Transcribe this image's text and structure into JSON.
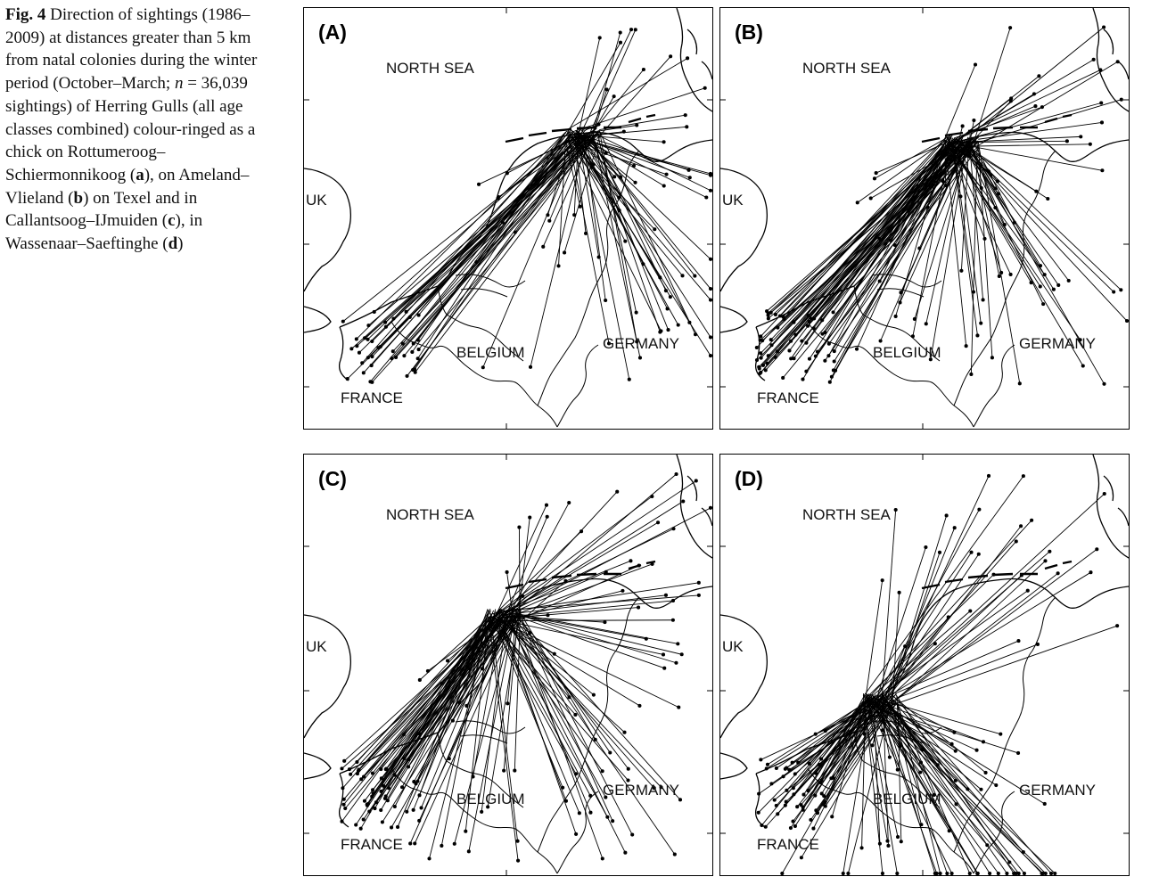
{
  "caption": {
    "fig_label": "Fig. 4",
    "text_1": "Direction of sightings (1986–2009) at distances greater than 5 km from natal colonies during the winter period (October–March; ",
    "n_symbol": "n",
    "text_2": " = 36,039 sightings) of Herring Gulls (all age classes combined) colour-ringed as a chick on Rottumeroog–Schiermonnikoog (",
    "a": "a",
    "text_3": "), on Ameland–Vlieland (",
    "b": "b",
    "text_4": ") on Texel and in Callantsoog–IJmuiden (",
    "c": "c",
    "text_5": "), in Wassenaar–Saeftinghe (",
    "d": "d",
    "text_6": ")"
  },
  "map_labels": {
    "north_sea": "NORTH SEA",
    "uk": "UK",
    "belgium": "BELGIUM",
    "germany": "GERMANY",
    "france": "FRANCE"
  },
  "panels": [
    {
      "id": "A",
      "label": "(A)",
      "origin": "Rottumeroog–Schiermonnikoog",
      "density": 120
    },
    {
      "id": "B",
      "label": "(B)",
      "origin": "Ameland–Vlieland",
      "density": 150
    },
    {
      "id": "C",
      "label": "(C)",
      "origin": "Texel and Callantsoog–IJmuiden",
      "density": 150
    },
    {
      "id": "D",
      "label": "(D)",
      "origin": "Wassenaar–Saeftinghe",
      "density": 150
    }
  ],
  "colors": {
    "lines": "#000000",
    "background": "#ffffff"
  }
}
